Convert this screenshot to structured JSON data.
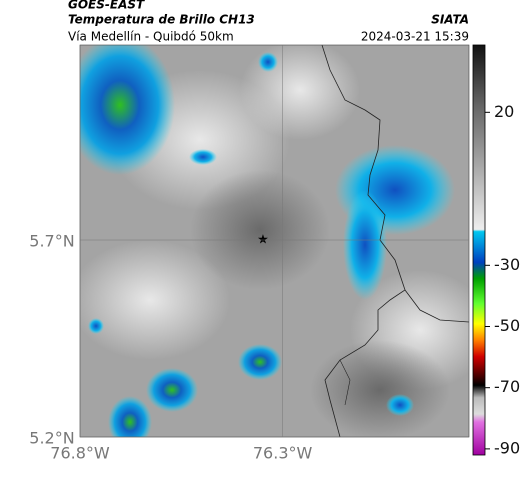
{
  "header": {
    "source": "GOES-EAST",
    "product": "Temperatura de Brillo CH13",
    "agency": "SIATA",
    "route": "Vía Medellín - Quibdó 50km",
    "timestamp": "2024-03-21 15:39"
  },
  "map": {
    "xlim": [
      -76.8,
      -75.84
    ],
    "ylim": [
      5.2,
      6.195
    ],
    "xticks": [
      {
        "value": -76.8,
        "label": "76.8°W"
      },
      {
        "value": -76.3,
        "label": "76.3°W"
      }
    ],
    "yticks": [
      {
        "value": 5.2,
        "label": "5.2°N"
      },
      {
        "value": 5.7,
        "label": "5.7°N"
      }
    ]
  },
  "colorbar": {
    "lim": [
      -92,
      42
    ],
    "ticks": [
      20,
      -30,
      -50,
      -70,
      -90
    ]
  }
}
